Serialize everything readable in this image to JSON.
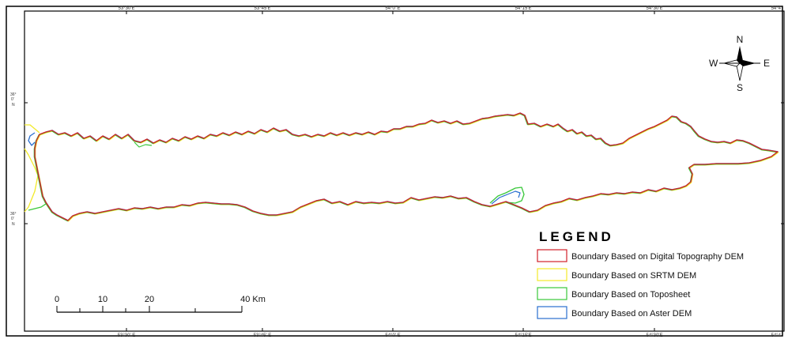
{
  "map": {
    "top_ticks": [
      "53°30'E",
      "53°45'E",
      "54°0' E",
      "54°15'E",
      "54°30'E",
      "54°4"
    ],
    "bottom_ticks": [
      "53°30' E",
      "53°45' E",
      "54°0' E",
      "54°15'E",
      "54°30'E",
      "54°4"
    ],
    "left_ticks": [
      {
        "deg": "36°",
        "min": "0'",
        "dir": "N"
      },
      {
        "deg": "36°",
        "min": "0'",
        "dir": "N"
      }
    ]
  },
  "compass": {
    "north": "N",
    "south": "S",
    "east": "E",
    "west": "W",
    "icon": "north-arrow-compass-icon"
  },
  "legend": {
    "title": "LEGEND",
    "items": [
      {
        "label": "Boundary Based on Digital Topography DEM",
        "color": "#d2202a"
      },
      {
        "label": "Boundary Based on SRTM DEM",
        "color": "#f2ea2a"
      },
      {
        "label": "Boundary Based on Toposheet",
        "color": "#39c83a"
      },
      {
        "label": "Boundary Based on Aster DEM",
        "color": "#2a6fcf"
      }
    ]
  },
  "scale_bar": {
    "labels": [
      "0",
      "10",
      "20",
      "40 Km"
    ]
  },
  "colors": {
    "frame": "#000000",
    "digital_dem": "#d2202a",
    "srtm_dem": "#f2ea2a",
    "toposheet": "#39c83a",
    "aster_dem": "#2a6fcf"
  }
}
